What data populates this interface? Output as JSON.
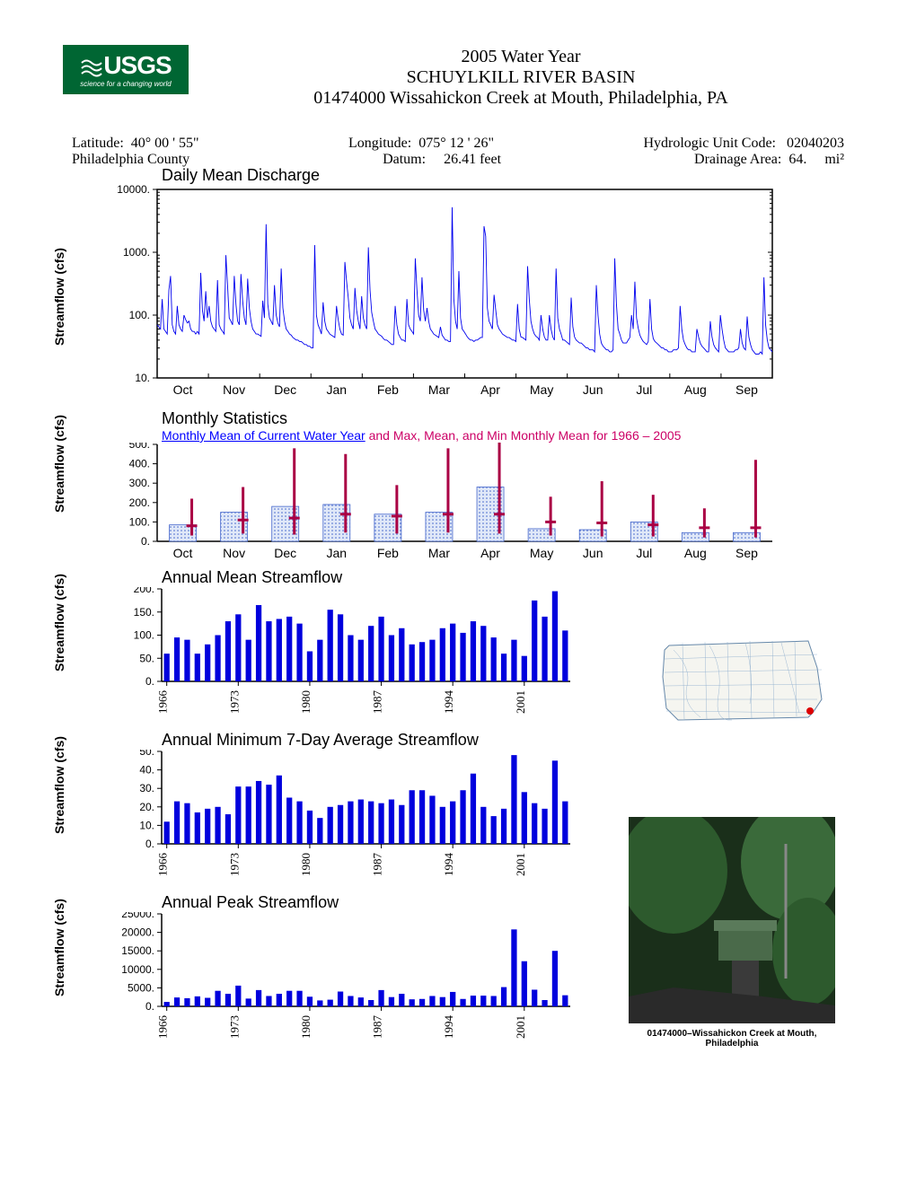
{
  "header": {
    "logo_main": "USGS",
    "logo_tag": "science for a changing world",
    "line1": "2005  Water Year",
    "line2": "SCHUYLKILL RIVER BASIN",
    "line3": "01474000   Wissahickon Creek at Mouth, Philadelphia, PA"
  },
  "meta": {
    "lat_label": "Latitude:",
    "lat_val": "40° 00 ' 55\"",
    "lon_label": "Longitude:",
    "lon_val": "075° 12 ' 26\"",
    "huc_label": "Hydrologic Unit Code:",
    "huc_val": "02040203",
    "county": "Philadelphia County",
    "datum_label": "Datum:",
    "datum_val": "26.41 feet",
    "da_label": "Drainage Area:",
    "da_val": "64.",
    "da_unit": "mi²"
  },
  "months": [
    "Oct",
    "Nov",
    "Dec",
    "Jan",
    "Feb",
    "Mar",
    "Apr",
    "May",
    "Jun",
    "Jul",
    "Aug",
    "Sep"
  ],
  "years_ticks": [
    "1966",
    "1973",
    "1980",
    "1987",
    "1994",
    "2001"
  ],
  "daily": {
    "title": "Daily Mean Discharge",
    "ylabel": "Streamflow (cfs)",
    "yticks": [
      "10.",
      "100.",
      "1000.",
      "10000."
    ],
    "line_color": "#0000ee",
    "ylim": [
      10,
      10000
    ],
    "scale": "log",
    "values": [
      70,
      65,
      60,
      180,
      60,
      55,
      50,
      250,
      420,
      70,
      55,
      50,
      140,
      70,
      60,
      55,
      100,
      85,
      75,
      80,
      60,
      55,
      55,
      50,
      55,
      50,
      470,
      120,
      80,
      240,
      90,
      140,
      80,
      65,
      60,
      55,
      360,
      70,
      60,
      55,
      50,
      900,
      300,
      90,
      80,
      70,
      420,
      150,
      80,
      70,
      450,
      170,
      90,
      70,
      380,
      130,
      80,
      60,
      55,
      50,
      50,
      48,
      46,
      170,
      90,
      2800,
      150,
      90,
      80,
      70,
      300,
      100,
      75,
      65,
      550,
      130,
      80,
      60,
      55,
      50,
      48,
      44,
      42,
      40,
      40,
      38,
      38,
      36,
      34,
      34,
      32,
      32,
      30,
      30,
      1300,
      100,
      70,
      60,
      50,
      160,
      80,
      60,
      55,
      50,
      48,
      46,
      44,
      140,
      85,
      60,
      50,
      48,
      700,
      350,
      190,
      90,
      70,
      60,
      270,
      120,
      80,
      60,
      200,
      90,
      70,
      60,
      1200,
      250,
      110,
      80,
      60,
      55,
      50,
      48,
      46,
      42,
      40,
      40,
      38,
      36,
      34,
      34,
      140,
      70,
      50,
      44,
      40,
      40,
      38,
      180,
      70,
      60,
      55,
      50,
      800,
      250,
      100,
      80,
      400,
      120,
      80,
      130,
      80,
      60,
      55,
      50,
      48,
      46,
      44,
      65,
      48,
      44,
      40,
      40,
      38,
      38,
      5200,
      180,
      80,
      60,
      500,
      90,
      60,
      55,
      50,
      45,
      42,
      40,
      40,
      38,
      40,
      40,
      42,
      44,
      44,
      2600,
      1800,
      130,
      80,
      70,
      60,
      210,
      120,
      70,
      60,
      55,
      50,
      48,
      46,
      44,
      44,
      42,
      40,
      40,
      38,
      150,
      60,
      45,
      44,
      42,
      40,
      600,
      180,
      80,
      60,
      50,
      46,
      44,
      40,
      100,
      60,
      45,
      40,
      40,
      100,
      60,
      45,
      40,
      550,
      90,
      60,
      50,
      40,
      40,
      38,
      36,
      34,
      190,
      65,
      45,
      40,
      38,
      36,
      36,
      34,
      32,
      30,
      30,
      28,
      28,
      28,
      26,
      300,
      100,
      50,
      36,
      32,
      30,
      28,
      28,
      26,
      26,
      28,
      800,
      150,
      60,
      50,
      40,
      36,
      36,
      36,
      40,
      44,
      100,
      60,
      340,
      90,
      62,
      48,
      42,
      38,
      36,
      34,
      38,
      180,
      60,
      42,
      38,
      36,
      34,
      32,
      30,
      30,
      28,
      28,
      26,
      26,
      26,
      28,
      28,
      28,
      30,
      140,
      60,
      40,
      34,
      30,
      28,
      28,
      26,
      26,
      26,
      60,
      45,
      36,
      32,
      30,
      28,
      26,
      26,
      80,
      45,
      34,
      30,
      28,
      26,
      100,
      60,
      40,
      30,
      28,
      26,
      26,
      26,
      26,
      28,
      28,
      30,
      60,
      36,
      30,
      28,
      95,
      45,
      34,
      28,
      26,
      24,
      24,
      24,
      26,
      24,
      400,
      70,
      40,
      30,
      28,
      26
    ]
  },
  "monthly": {
    "title": "Monthly Statistics",
    "sub_blue": "Monthly Mean of Current Water Year",
    "sub_red": "  and Max, Mean, and Min Monthly Mean for 1966 – 2005",
    "ylabel": "Streamflow (cfs)",
    "yticks": [
      "0.",
      "100.",
      "200.",
      "300.",
      "400.",
      "500."
    ],
    "ylim": [
      0,
      500
    ],
    "bar_color": "#6699ee",
    "bar_pattern_color": "#4466cc",
    "range_color": "#aa0044",
    "data": [
      {
        "current": 85,
        "min": 30,
        "mean": 80,
        "max": 220
      },
      {
        "current": 150,
        "min": 40,
        "mean": 110,
        "max": 280
      },
      {
        "current": 180,
        "min": 35,
        "mean": 120,
        "max": 480
      },
      {
        "current": 190,
        "min": 45,
        "mean": 140,
        "max": 450
      },
      {
        "current": 140,
        "min": 40,
        "mean": 130,
        "max": 290
      },
      {
        "current": 150,
        "min": 45,
        "mean": 140,
        "max": 480
      },
      {
        "current": 280,
        "min": 40,
        "mean": 140,
        "max": 530
      },
      {
        "current": 65,
        "min": 30,
        "mean": 100,
        "max": 230
      },
      {
        "current": 60,
        "min": 25,
        "mean": 95,
        "max": 310
      },
      {
        "current": 100,
        "min": 25,
        "mean": 85,
        "max": 240
      },
      {
        "current": 45,
        "min": 20,
        "mean": 70,
        "max": 170
      },
      {
        "current": 45,
        "min": 20,
        "mean": 70,
        "max": 420
      }
    ]
  },
  "annual_mean": {
    "title": "Annual Mean Streamflow",
    "ylabel": "Streamflow (cfs)",
    "yticks": [
      "0.",
      "50.",
      "100.",
      "150.",
      "200."
    ],
    "ylim": [
      0,
      200
    ],
    "bar_color": "#0000dd",
    "start_year": 1966,
    "values": [
      60,
      95,
      90,
      60,
      80,
      100,
      130,
      145,
      90,
      165,
      130,
      135,
      140,
      125,
      65,
      90,
      155,
      145,
      100,
      90,
      120,
      140,
      100,
      115,
      80,
      85,
      90,
      115,
      125,
      105,
      130,
      120,
      95,
      60,
      90,
      55,
      175,
      140,
      195,
      110
    ]
  },
  "annual_min7": {
    "title": "Annual Minimum 7-Day Average Streamflow",
    "ylabel": "Streamflow (cfs)",
    "yticks": [
      "0.",
      "10.",
      "20.",
      "30.",
      "40.",
      "50."
    ],
    "ylim": [
      0,
      50
    ],
    "bar_color": "#0000dd",
    "start_year": 1966,
    "values": [
      12,
      23,
      22,
      17,
      19,
      20,
      16,
      31,
      31,
      34,
      32,
      37,
      25,
      23,
      18,
      14,
      20,
      21,
      23,
      24,
      23,
      22,
      24,
      21,
      29,
      29,
      26,
      20,
      23,
      29,
      38,
      20,
      15,
      19,
      48,
      28,
      22,
      19,
      45,
      23
    ]
  },
  "annual_peak": {
    "title": "Annual Peak Streamflow",
    "ylabel": "Streamflow (cfs)",
    "yticks": [
      "0.",
      "5000.",
      "10000.",
      "15000.",
      "20000.",
      "25000."
    ],
    "ylim": [
      0,
      25000
    ],
    "bar_color": "#0000dd",
    "start_year": 1966,
    "values": [
      1200,
      2400,
      2200,
      2700,
      2300,
      4200,
      3400,
      5600,
      2100,
      4400,
      2800,
      3400,
      4200,
      4200,
      2600,
      1600,
      1800,
      4000,
      2800,
      2400,
      1700,
      4400,
      2500,
      3400,
      1900,
      2000,
      2800,
      2500,
      3900,
      2000,
      2900,
      2900,
      2800,
      5200,
      20800,
      12200,
      4500,
      1700,
      15000,
      3000
    ]
  },
  "photo": {
    "caption": "01474000–Wissahickon Creek at Mouth, Philadelphia"
  }
}
